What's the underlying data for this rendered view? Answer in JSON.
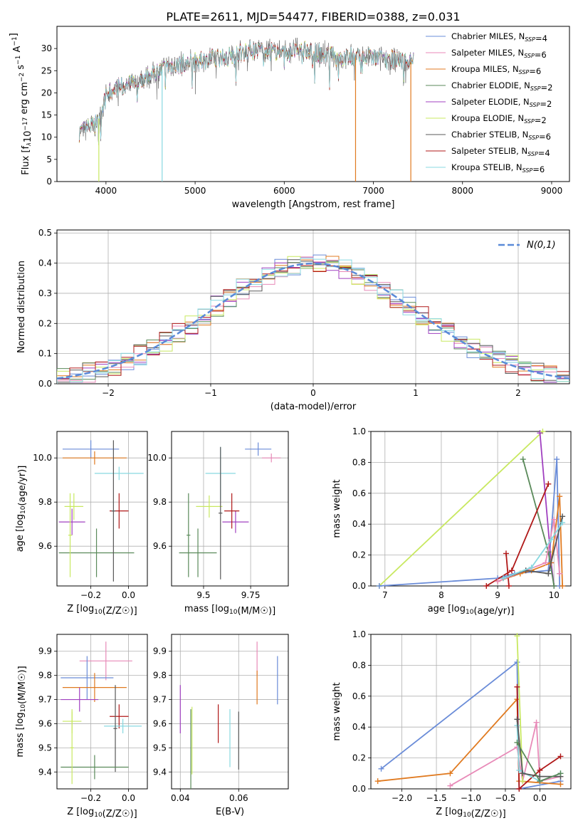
{
  "title": "PLATE=2611, MJD=54477, FIBERID=0388, z=0.031",
  "colors": [
    "#6a8cd8",
    "#e88ab8",
    "#e07a20",
    "#5a8a5a",
    "#a040c0",
    "#c8e860",
    "#585858",
    "#b01818",
    "#88d8e0"
  ],
  "chart_data": [
    {
      "id": "spectrum",
      "type": "line",
      "xlabel": "wavelength [Angstrom, rest frame]",
      "ylabel": "Flux [f_λ10^-17 erg cm^-2 s^-1 A^-1]",
      "xlim": [
        3450,
        9200
      ],
      "ylim": [
        0,
        35
      ],
      "xticks": [
        4000,
        5000,
        6000,
        7000,
        8000,
        9000
      ],
      "yticks": [
        0,
        5,
        10,
        15,
        20,
        25,
        30
      ],
      "grid": false,
      "legend_position": "top-right",
      "observed_range": [
        3700,
        7450
      ],
      "legend": [
        {
          "label": "Chabrier MILES, N_SSP=4",
          "color": "#6a8cd8"
        },
        {
          "label": "Salpeter MILES, N_SSP=6",
          "color": "#e88ab8"
        },
        {
          "label": "Kroupa MILES, N_SSP=6",
          "color": "#e07a20"
        },
        {
          "label": "Chabrier ELODIE, N_SSP=2",
          "color": "#5a8a5a"
        },
        {
          "label": "Salpeter ELODIE, N_SSP=2",
          "color": "#a040c0"
        },
        {
          "label": "Kroupa ELODIE, N_SSP=2",
          "color": "#c8e860"
        },
        {
          "label": "Chabrier STELIB, N_SSP=6",
          "color": "#585858"
        },
        {
          "label": "Salpeter STELIB, N_SSP=4",
          "color": "#b01818"
        },
        {
          "label": "Kroupa STELIB, N_SSP=6",
          "color": "#88d8e0"
        }
      ],
      "continuum": {
        "x": [
          3700,
          3800,
          3900,
          4000,
          4100,
          4300,
          4500,
          4700,
          5000,
          5300,
          5600,
          6000,
          6300,
          6600,
          7000,
          7400
        ],
        "y": [
          11,
          12,
          13,
          19,
          21,
          22,
          24,
          26,
          27,
          28,
          29.5,
          29.5,
          29.5,
          28,
          28,
          27
        ]
      },
      "dropouts": [
        {
          "x": 3920,
          "color": "#c8e860"
        },
        {
          "x": 4630,
          "color": "#88d8e0"
        },
        {
          "x": 6800,
          "color": "#e07a20"
        },
        {
          "x": 7420,
          "color": "#e07a20"
        }
      ]
    },
    {
      "id": "residuals",
      "type": "step",
      "xlabel": "(data-model)/error",
      "ylabel": "Normed distribution",
      "xlim": [
        -2.5,
        2.5
      ],
      "ylim": [
        0,
        0.51
      ],
      "xticks": [
        -2,
        -1,
        0,
        1,
        2
      ],
      "yticks": [
        0.0,
        0.1,
        0.2,
        0.3,
        0.4,
        0.5
      ],
      "grid": true,
      "legend_position": "top-right",
      "legend_label": "N(0,1)",
      "reference_curve": {
        "type": "gaussian",
        "mean": 0,
        "sigma": 1,
        "color": "#5a8ad8"
      },
      "bin_range": [
        -2.5,
        2.5
      ],
      "nbins": 40
    },
    {
      "id": "age_vs_Z",
      "type": "errorbar",
      "xlabel": "Z [log10(Z/Z☉)]",
      "ylabel": "age  [log10(age/yr)]",
      "xlim": [
        -0.38,
        0.1
      ],
      "ylim": [
        9.42,
        10.12
      ],
      "xticks": [
        -0.2,
        0.0
      ],
      "yticks": [
        9.6,
        9.8,
        10.0
      ],
      "grid": true,
      "points": [
        {
          "x": -0.2,
          "xerr": 0.15,
          "y": 10.04,
          "yerr": 0.04,
          "c": 0
        },
        {
          "x": -0.18,
          "xerr": 0.17,
          "y": 10.0,
          "yerr": 0.03,
          "c": 2
        },
        {
          "x": -0.05,
          "xerr": 0.13,
          "y": 9.93,
          "yerr": 0.03,
          "c": 8
        },
        {
          "x": -0.29,
          "xerr": 0.05,
          "y": 9.78,
          "yerr": 0.06,
          "c": 5
        },
        {
          "x": -0.3,
          "xerr": 0.07,
          "y": 9.71,
          "yerr": 0.06,
          "c": 4
        },
        {
          "x": -0.05,
          "xerr": 0.05,
          "y": 9.76,
          "yerr": 0.08,
          "c": 7
        },
        {
          "x": -0.17,
          "xerr": 0.2,
          "y": 9.57,
          "yerr": 0.11,
          "c": 3
        },
        {
          "x": -0.08,
          "xerr": 0.01,
          "y": 9.76,
          "yerr": 0.32,
          "c": 6
        },
        {
          "x": -0.31,
          "xerr": 0.01,
          "y": 9.65,
          "yerr": 0.19,
          "c": 5
        }
      ]
    },
    {
      "id": "age_vs_mass",
      "type": "errorbar",
      "xlabel": "mass [log10(M/M☉)]",
      "ylabel": "",
      "xlim": [
        9.33,
        9.95
      ],
      "ylim": [
        9.42,
        10.12
      ],
      "xticks": [
        9.5,
        9.75
      ],
      "yticks": [
        9.6,
        9.8,
        10.0
      ],
      "grid": true,
      "points": [
        {
          "x": 9.79,
          "xerr": 0.07,
          "y": 10.04,
          "yerr": 0.03,
          "c": 0
        },
        {
          "x": 9.86,
          "xerr": 0.05,
          "y": 10.0,
          "yerr": 0.02,
          "c": 1
        },
        {
          "x": 9.59,
          "xerr": 0.08,
          "y": 9.93,
          "yerr": 0.12,
          "c": 8
        },
        {
          "x": 9.53,
          "xerr": 0.07,
          "y": 9.78,
          "yerr": 0.05,
          "c": 5
        },
        {
          "x": 9.67,
          "xerr": 0.07,
          "y": 9.71,
          "yerr": 0.05,
          "c": 4
        },
        {
          "x": 9.65,
          "xerr": 0.04,
          "y": 9.76,
          "yerr": 0.08,
          "c": 7
        },
        {
          "x": 9.47,
          "xerr": 0.1,
          "y": 9.57,
          "yerr": 0.11,
          "c": 3
        },
        {
          "x": 9.59,
          "xerr": 0.01,
          "y": 9.75,
          "yerr": 0.3,
          "c": 6
        },
        {
          "x": 9.42,
          "xerr": 0.01,
          "y": 9.65,
          "yerr": 0.19,
          "c": 3
        }
      ]
    },
    {
      "id": "weight_vs_age",
      "type": "line",
      "xlabel": "age  [log10(age/yr)]",
      "ylabel": "mass weight",
      "xlim": [
        6.75,
        10.3
      ],
      "ylim": [
        0,
        1
      ],
      "xticks": [
        7,
        8,
        9,
        10
      ],
      "yticks": [
        0.0,
        0.2,
        0.4,
        0.6,
        0.8,
        1.0
      ],
      "grid": true,
      "series": [
        {
          "c": 5,
          "x": [
            6.9,
            9.8
          ],
          "y": [
            0.0,
            1.0
          ]
        },
        {
          "c": 0,
          "x": [
            6.9,
            9.0,
            9.3,
            9.9,
            10.05,
            10.1
          ],
          "y": [
            0.0,
            0.05,
            0.08,
            0.1,
            0.82,
            0.0
          ]
        },
        {
          "c": 4,
          "x": [
            9.75,
            9.95,
            10.0
          ],
          "y": [
            0.99,
            0.15,
            0.0
          ]
        },
        {
          "c": 3,
          "x": [
            9.45,
            9.9,
            10.0
          ],
          "y": [
            0.82,
            0.22,
            0.0
          ]
        },
        {
          "c": 7,
          "x": [
            8.8,
            9.25,
            9.9
          ],
          "y": [
            0.0,
            0.1,
            0.66
          ]
        },
        {
          "c": 7,
          "x": [
            9.15,
            9.2
          ],
          "y": [
            0.21,
            0.0
          ]
        },
        {
          "c": 2,
          "x": [
            9.0,
            9.4,
            9.6,
            9.95,
            10.1,
            10.15
          ],
          "y": [
            0.03,
            0.08,
            0.1,
            0.15,
            0.58,
            0.0
          ]
        },
        {
          "c": 1,
          "x": [
            9.0,
            9.5,
            9.85,
            10.0,
            10.1
          ],
          "y": [
            0.03,
            0.1,
            0.15,
            0.43,
            0.08
          ]
        },
        {
          "c": 6,
          "x": [
            9.1,
            9.5,
            9.9,
            10.15
          ],
          "y": [
            0.05,
            0.1,
            0.08,
            0.45
          ]
        },
        {
          "c": 8,
          "x": [
            9.1,
            9.6,
            9.95,
            10.15
          ],
          "y": [
            0.05,
            0.12,
            0.3,
            0.41
          ]
        }
      ]
    },
    {
      "id": "mass_vs_Z",
      "type": "errorbar",
      "xlabel": "Z [log10(Z/Z☉)]",
      "ylabel": "mass [log10(M/M☉)]",
      "xlim": [
        -0.38,
        0.1
      ],
      "ylim": [
        9.33,
        9.97
      ],
      "xticks": [
        -0.2,
        0.0
      ],
      "yticks": [
        9.4,
        9.5,
        9.6,
        9.7,
        9.8,
        9.9
      ],
      "grid": true,
      "points": [
        {
          "x": -0.12,
          "xerr": 0.14,
          "y": 9.86,
          "yerr": 0.08,
          "c": 1
        },
        {
          "x": -0.22,
          "xerr": 0.14,
          "y": 9.79,
          "yerr": 0.09,
          "c": 0
        },
        {
          "x": -0.18,
          "xerr": 0.17,
          "y": 9.75,
          "yerr": 0.06,
          "c": 2
        },
        {
          "x": -0.26,
          "xerr": 0.1,
          "y": 9.7,
          "yerr": 0.05,
          "c": 4
        },
        {
          "x": -0.05,
          "xerr": 0.05,
          "y": 9.63,
          "yerr": 0.05,
          "c": 7
        },
        {
          "x": -0.3,
          "xerr": 0.05,
          "y": 9.61,
          "yerr": 0.05,
          "c": 5
        },
        {
          "x": -0.03,
          "xerr": 0.1,
          "y": 9.59,
          "yerr": 0.03,
          "c": 8
        },
        {
          "x": -0.07,
          "xerr": 0.01,
          "y": 9.58,
          "yerr": 0.18,
          "c": 6
        },
        {
          "x": -0.18,
          "xerr": 0.18,
          "y": 9.42,
          "yerr": 0.05,
          "c": 3
        },
        {
          "x": -0.3,
          "xerr": 0.01,
          "y": 9.5,
          "yerr": 0.15,
          "c": 5
        }
      ]
    },
    {
      "id": "mass_vs_ebv",
      "type": "errorbar",
      "xlabel": "E(B-V)",
      "ylabel": "",
      "xlim": [
        0.037,
        0.077
      ],
      "ylim": [
        9.33,
        9.97
      ],
      "xticks": [
        0.04,
        0.06
      ],
      "yticks": [
        9.4,
        9.5,
        9.6,
        9.7,
        9.8,
        9.9
      ],
      "grid": true,
      "points": [
        {
          "x": 0.0733,
          "xerr": 0.0,
          "y": 9.78,
          "yerr": 0.1,
          "c": 0
        },
        {
          "x": 0.0663,
          "xerr": 0.0,
          "y": 9.87,
          "yerr": 0.07,
          "c": 1
        },
        {
          "x": 0.0663,
          "xerr": 0.0,
          "y": 9.75,
          "yerr": 0.07,
          "c": 2
        },
        {
          "x": 0.04,
          "xerr": 0.0,
          "y": 9.66,
          "yerr": 0.1,
          "c": 4
        },
        {
          "x": 0.044,
          "xerr": 0.0,
          "y": 9.53,
          "yerr": 0.14,
          "c": 5
        },
        {
          "x": 0.0436,
          "xerr": 0.0,
          "y": 9.46,
          "yerr": 0.2,
          "c": 3
        },
        {
          "x": 0.053,
          "xerr": 0.0,
          "y": 9.6,
          "yerr": 0.08,
          "c": 7
        },
        {
          "x": 0.057,
          "xerr": 0.0,
          "y": 9.54,
          "yerr": 0.12,
          "c": 8
        },
        {
          "x": 0.06,
          "xerr": 0.0,
          "y": 9.53,
          "yerr": 0.12,
          "c": 6
        }
      ]
    },
    {
      "id": "weight_vs_Z",
      "type": "line",
      "xlabel": "Z [log10(Z/Z☉)]",
      "ylabel": "mass weight",
      "xlim": [
        -2.45,
        0.45
      ],
      "ylim": [
        0,
        1
      ],
      "xticks": [
        -2.0,
        -1.5,
        -1.0,
        -0.5,
        0.0
      ],
      "yticks": [
        0.0,
        0.2,
        0.4,
        0.6,
        0.8,
        1.0
      ],
      "grid": true,
      "series": [
        {
          "c": 0,
          "x": [
            -2.3,
            -0.33,
            -0.3,
            0.3
          ],
          "y": [
            0.13,
            0.82,
            0.0,
            0.05
          ]
        },
        {
          "c": 2,
          "x": [
            -2.35,
            -1.3,
            -0.33,
            -0.3,
            0.3
          ],
          "y": [
            0.05,
            0.1,
            0.58,
            0.05,
            0.03
          ]
        },
        {
          "c": 1,
          "x": [
            -1.3,
            -0.33,
            -0.25,
            -0.05,
            0.0,
            0.3
          ],
          "y": [
            0.02,
            0.27,
            0.05,
            0.43,
            0.05,
            0.08
          ]
        },
        {
          "c": 5,
          "x": [
            -0.33,
            -0.25
          ],
          "y": [
            0.99,
            0.05
          ]
        },
        {
          "c": 7,
          "x": [
            -0.33,
            -0.3,
            0.0,
            0.3
          ],
          "y": [
            0.66,
            0.0,
            0.12,
            0.21
          ]
        },
        {
          "c": 8,
          "x": [
            -0.33,
            -0.3,
            0.0,
            0.3
          ],
          "y": [
            0.41,
            0.12,
            0.05,
            0.1
          ]
        },
        {
          "c": 6,
          "x": [
            -0.33,
            -0.25,
            0.0,
            0.3
          ],
          "y": [
            0.45,
            0.1,
            0.08,
            0.08
          ]
        },
        {
          "c": 3,
          "x": [
            -0.33,
            0.0,
            0.3
          ],
          "y": [
            0.3,
            0.05,
            0.1
          ]
        }
      ]
    }
  ]
}
